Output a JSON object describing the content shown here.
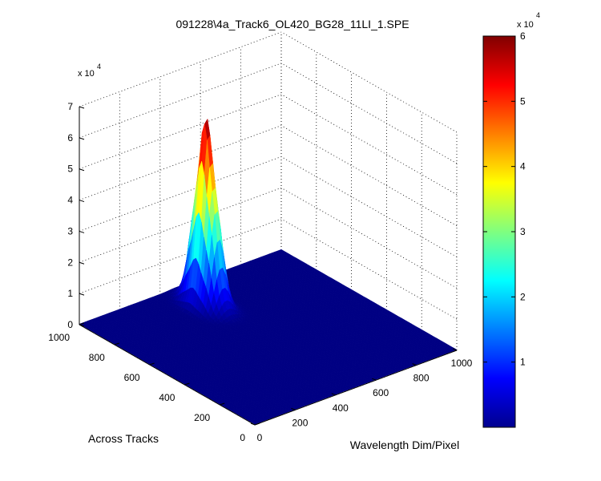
{
  "chart_data": {
    "type": "surface",
    "title": "091228\\4a_Track6_OL420_BG28_11LI_1.SPE",
    "xlabel": "Wavelength Dim/Pixel",
    "ylabel": "Across Tracks",
    "zlabel": "",
    "x_ticks": [
      "0",
      "200",
      "400",
      "600",
      "800",
      "1000"
    ],
    "y_ticks": [
      "0",
      "200",
      "400",
      "600",
      "800",
      "1000"
    ],
    "z_ticks": [
      "0",
      "1",
      "2",
      "3",
      "4",
      "5",
      "6",
      "7"
    ],
    "z_exponent": {
      "base": "x 10",
      "power": "4"
    },
    "xlim": [
      0,
      1000
    ],
    "ylim": [
      0,
      1000
    ],
    "zlim": [
      0,
      70000
    ],
    "grid": true,
    "colormap": "jet",
    "peak": {
      "x_center": 480,
      "y_center": 830,
      "x_width": 45,
      "y_width": 75,
      "z_max": 58000,
      "baseline": 200
    },
    "colorbar": {
      "ticks": [
        "1",
        "2",
        "3",
        "4",
        "5",
        "6"
      ],
      "range": [
        0,
        60000
      ],
      "exponent": {
        "base": "x 10",
        "power": "4"
      },
      "placement": "right"
    }
  }
}
